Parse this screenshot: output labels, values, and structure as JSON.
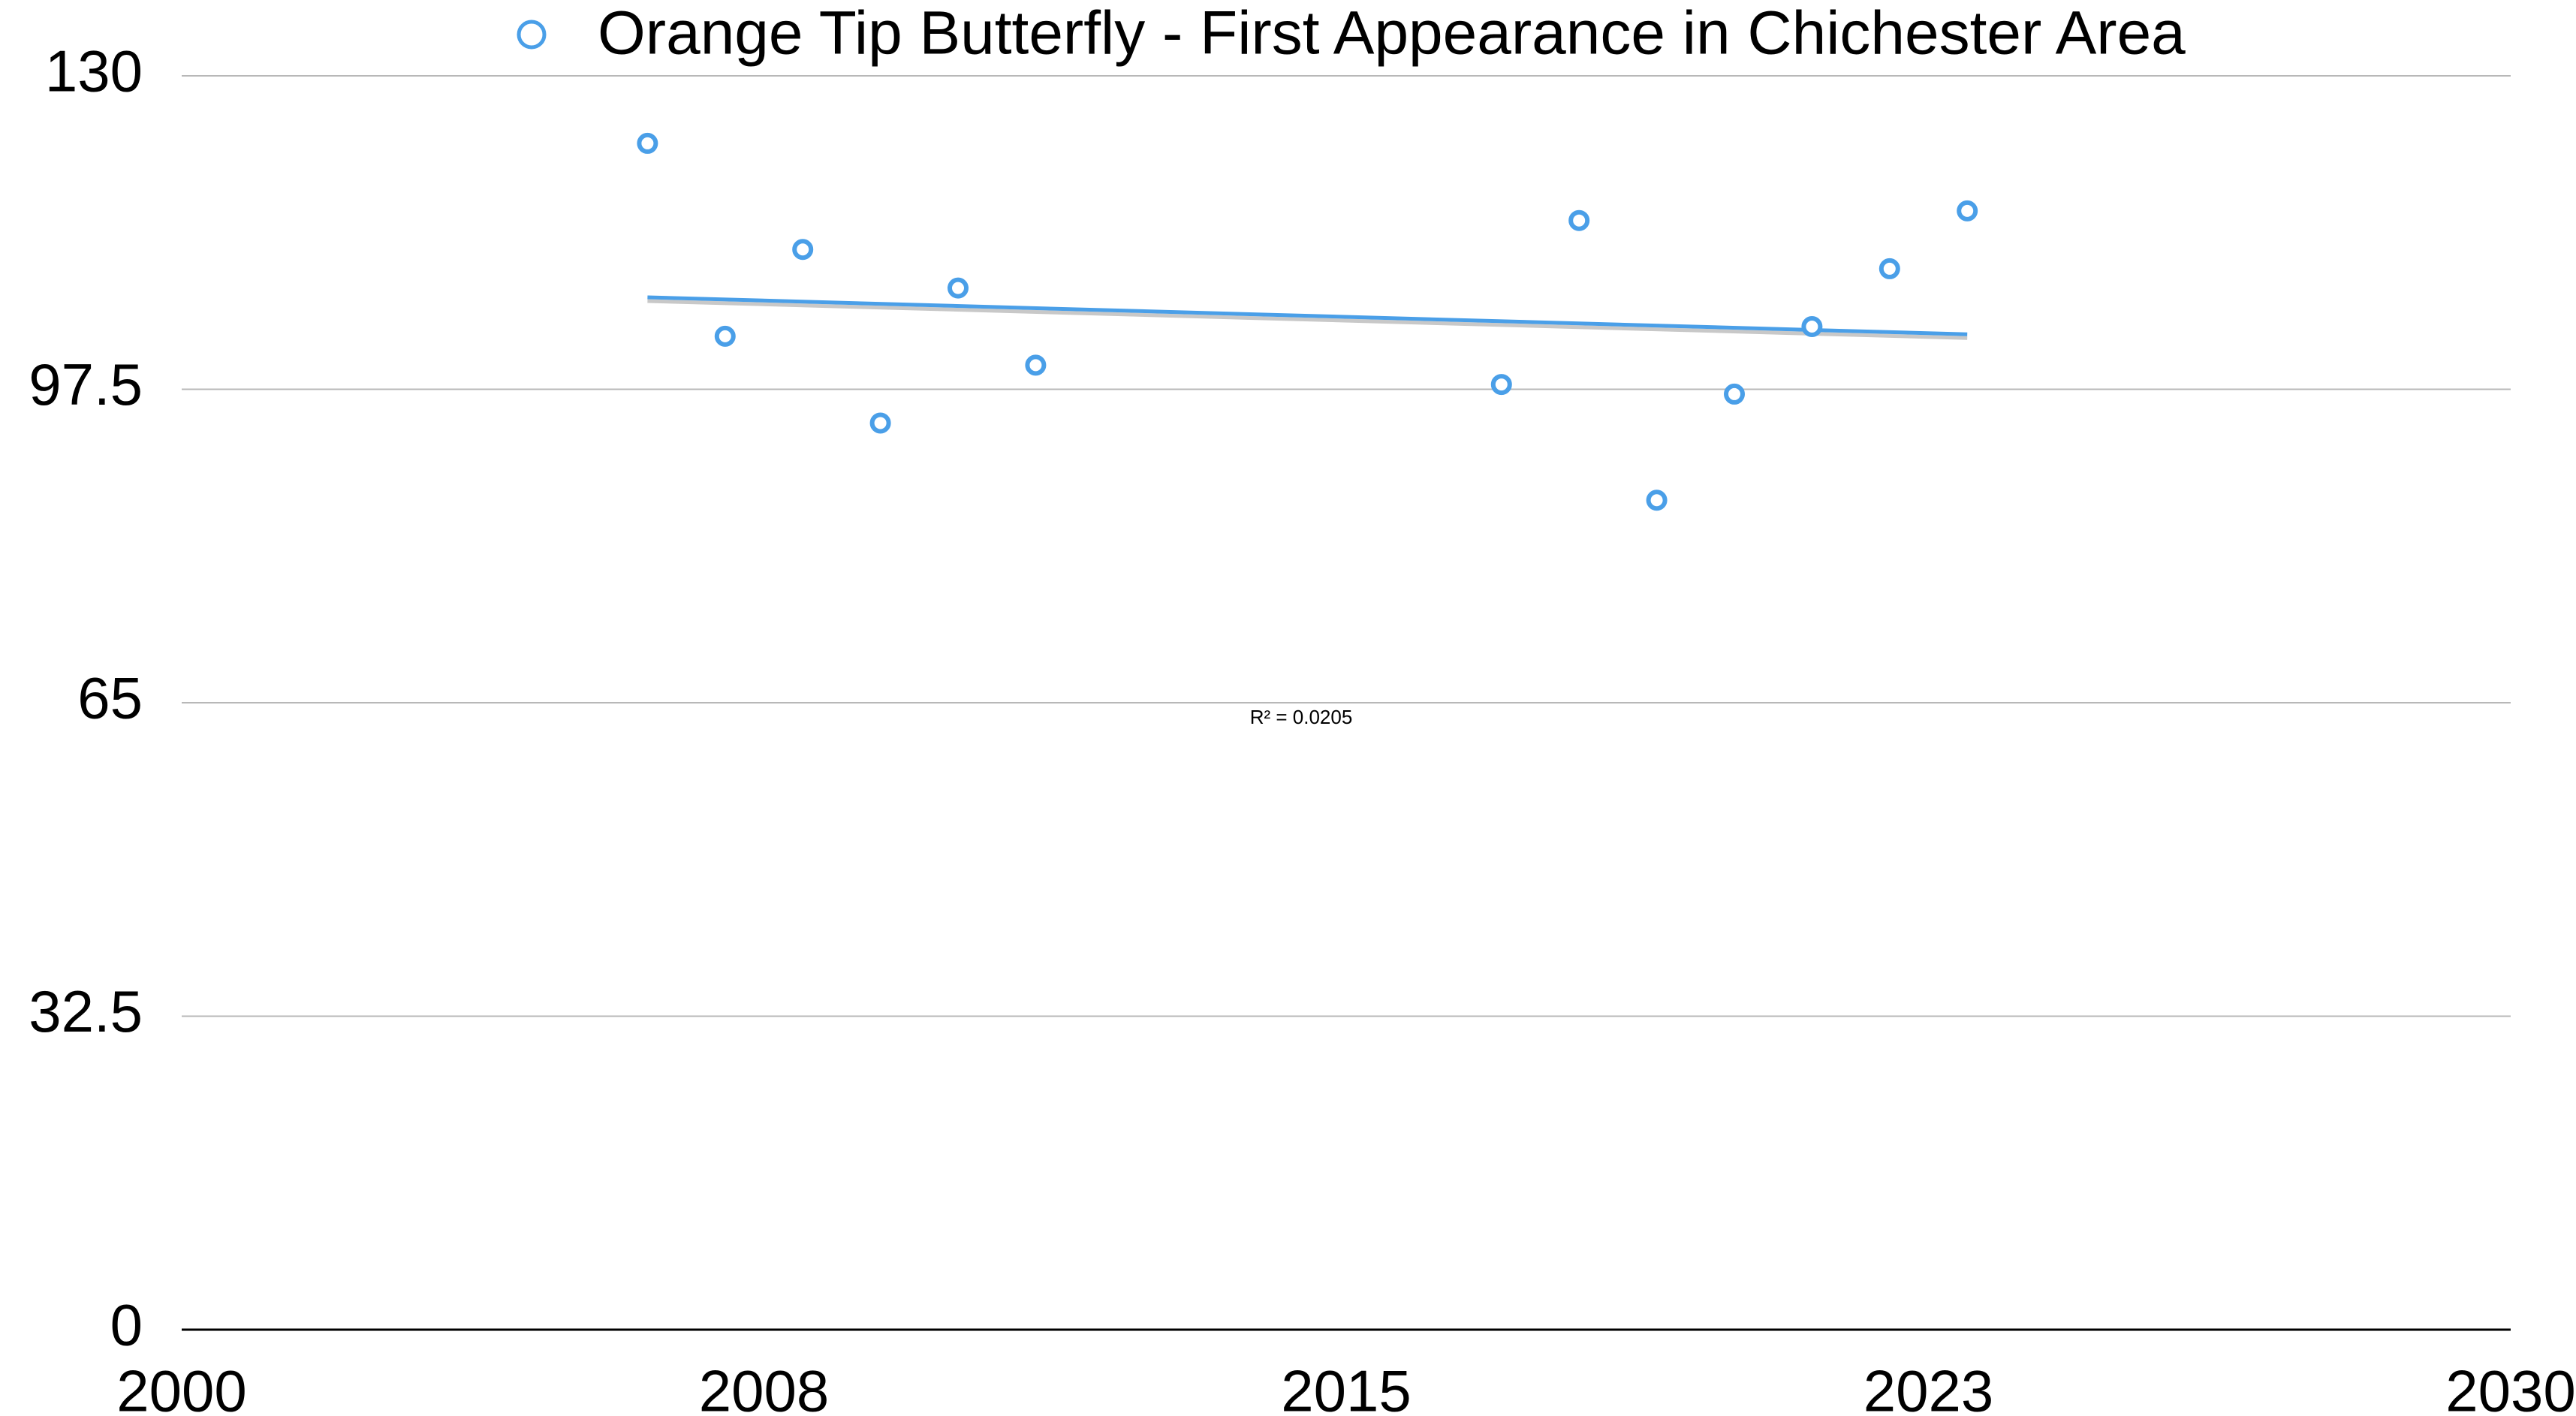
{
  "chart_data": {
    "type": "scatter",
    "series": [
      {
        "name": "Orange Tip Butterfly - First Appearance in Chichester Area",
        "color": "#4a9fe8",
        "x": [
          2006,
          2007,
          2008,
          2009,
          2010,
          2011,
          2017,
          2018,
          2019,
          2020,
          2021,
          2022,
          2023
        ],
        "values": [
          123,
          103,
          112,
          94,
          108,
          100,
          98,
          115,
          86,
          97,
          104,
          110,
          116
        ]
      }
    ],
    "xlim": [
      2000,
      2030
    ],
    "xticks": [
      2000,
      {
        "value": 2007.5,
        "label": "2008"
      },
      2015,
      {
        "value": 2022.5,
        "label": "2023"
      },
      2030
    ],
    "ylim": [
      0,
      130
    ],
    "yticks": [
      0,
      32.5,
      65,
      97.5,
      130
    ],
    "grid": true,
    "trendline": true,
    "annotation": "R² = 0.0205",
    "legend": "top"
  }
}
